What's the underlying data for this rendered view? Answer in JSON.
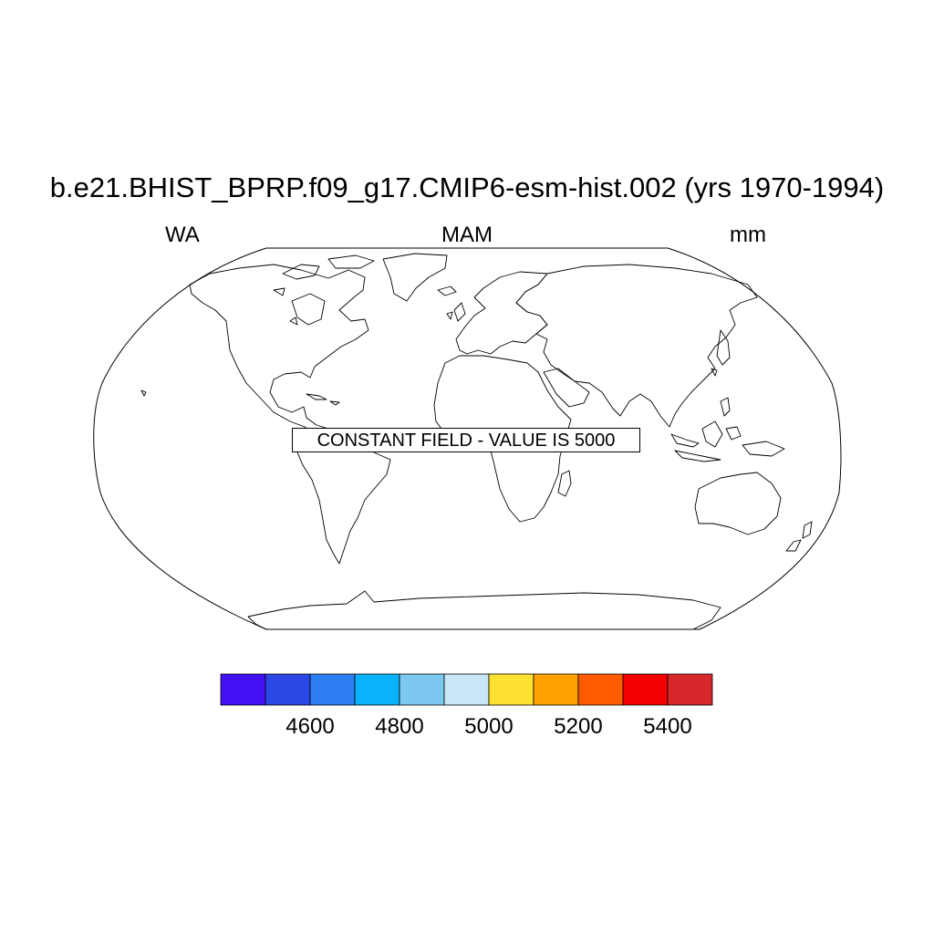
{
  "header": {
    "title": "b.e21.BHIST_BPRP.f09_g17.CMIP6-esm-hist.002 (yrs 1970-1994)",
    "left": "WA",
    "center": "MAM",
    "right": "mm"
  },
  "map": {
    "projection": "robinson",
    "notice": "CONSTANT FIELD - VALUE IS 5000"
  },
  "colorbar": {
    "colors": [
      "#4212f5",
      "#2b47e6",
      "#2d7ef0",
      "#0ab1fc",
      "#7dc8f0",
      "#c9e6f7",
      "#ffe131",
      "#ffa200",
      "#ff5c00",
      "#f40000",
      "#d6272b"
    ],
    "tick_labels": [
      "4600",
      "4800",
      "5000",
      "5200",
      "5400"
    ]
  }
}
